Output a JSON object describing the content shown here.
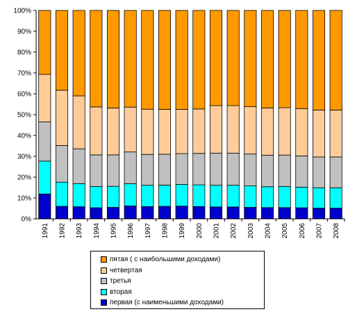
{
  "chart_data": {
    "type": "bar",
    "stacked": true,
    "normalized": true,
    "categories": [
      "1991",
      "1992",
      "1993",
      "1994",
      "1995",
      "1996",
      "1997",
      "1998",
      "1999",
      "2000",
      "2001",
      "2002",
      "2003",
      "2004",
      "2005",
      "2006",
      "2007",
      "2008"
    ],
    "series": [
      {
        "name": "первая (с наименьшими доходами)",
        "color": "#0000CC",
        "values": [
          11.9,
          6.0,
          5.8,
          5.3,
          5.5,
          6.2,
          5.9,
          6.0,
          6.1,
          5.9,
          5.7,
          5.7,
          5.5,
          5.4,
          5.4,
          5.3,
          5.1,
          5.1
        ]
      },
      {
        "name": "вторая",
        "color": "#00FFFF",
        "values": [
          15.8,
          11.6,
          11.1,
          10.2,
          10.1,
          10.7,
          10.2,
          10.2,
          10.4,
          10.4,
          10.4,
          10.4,
          10.3,
          10.0,
          10.1,
          9.9,
          9.8,
          9.8
        ]
      },
      {
        "name": "третья",
        "color": "#C0C0C0",
        "values": [
          18.8,
          17.6,
          16.7,
          15.2,
          15.1,
          15.2,
          14.8,
          14.8,
          14.8,
          15.1,
          15.4,
          15.4,
          15.3,
          15.1,
          15.1,
          15.0,
          14.8,
          14.8
        ]
      },
      {
        "name": "четвертая",
        "color": "#FFCC99",
        "values": [
          22.8,
          26.5,
          25.4,
          23.0,
          22.5,
          21.5,
          21.7,
          21.5,
          21.2,
          21.3,
          22.8,
          22.8,
          22.7,
          22.7,
          22.7,
          22.7,
          22.5,
          22.5
        ]
      },
      {
        "name": "пятая ( с наибольшими доходами)",
        "color": "#FF9900",
        "values": [
          30.7,
          38.3,
          41.0,
          46.3,
          46.8,
          46.4,
          47.4,
          47.5,
          47.5,
          47.3,
          45.7,
          45.7,
          46.2,
          46.8,
          46.7,
          47.1,
          47.8,
          47.8
        ]
      }
    ],
    "legend_order": [
      4,
      3,
      2,
      1,
      0
    ],
    "ylim": [
      0,
      100
    ],
    "yticks": [
      "0%",
      "10%",
      "20%",
      "30%",
      "40%",
      "50%",
      "60%",
      "70%",
      "80%",
      "90%",
      "100%"
    ],
    "grid": false,
    "legend_position": "bottom"
  }
}
